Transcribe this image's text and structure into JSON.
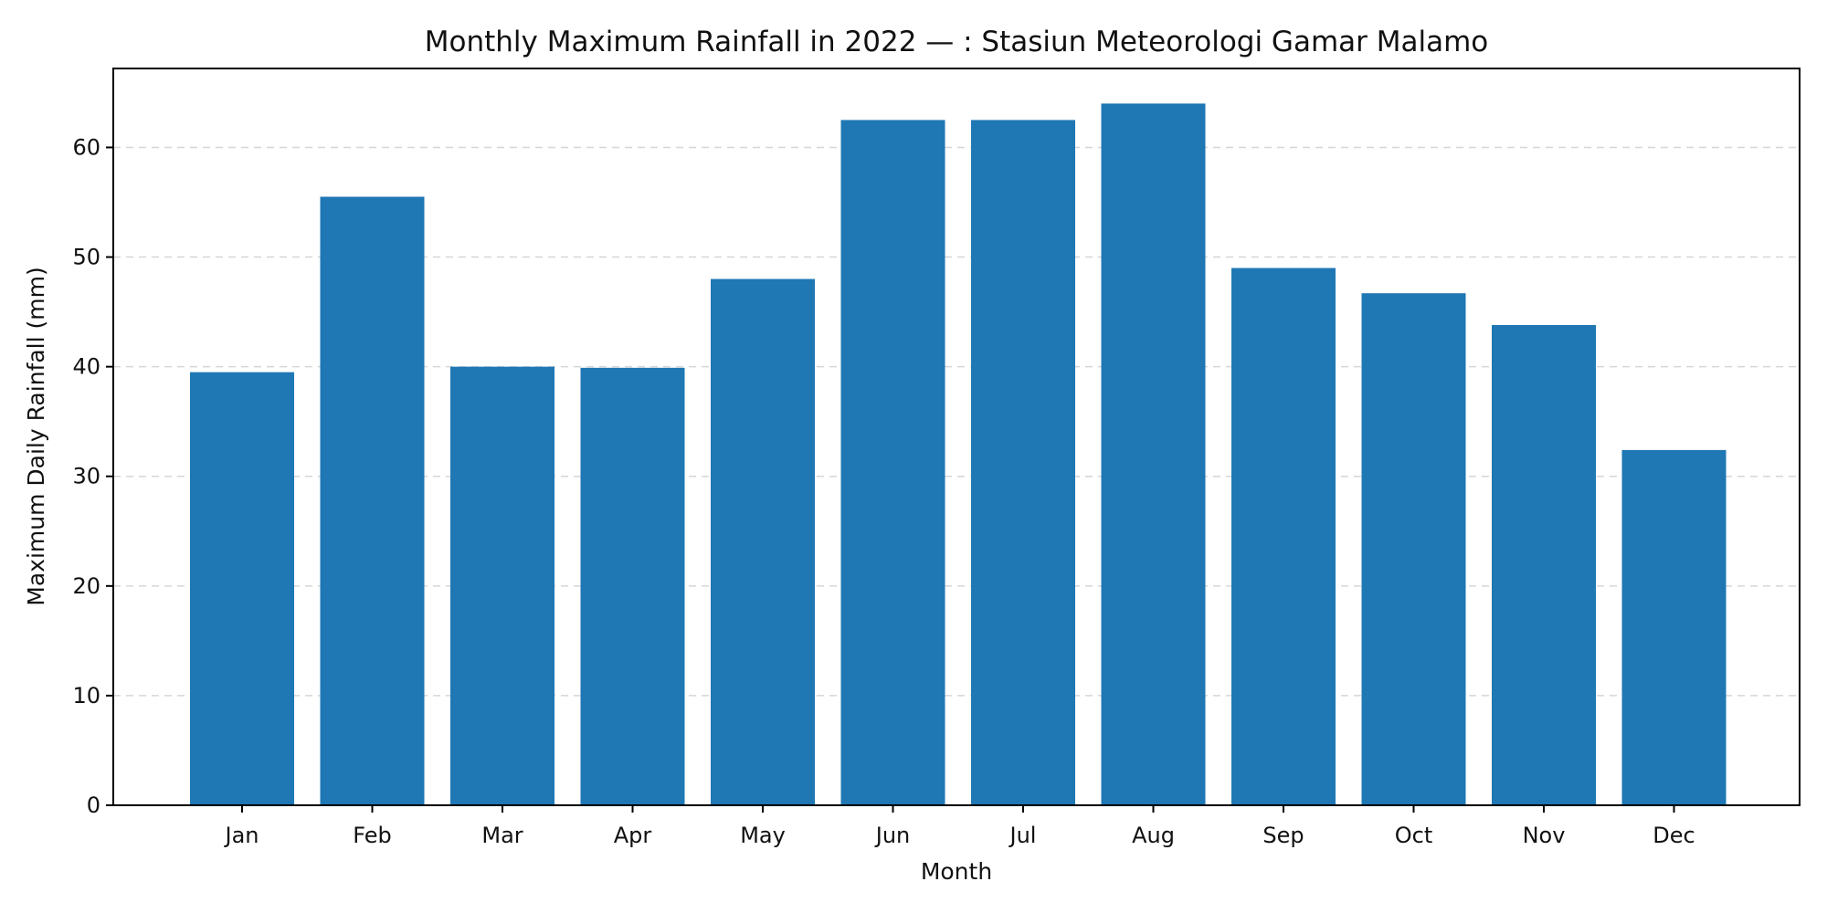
{
  "chart_data": {
    "type": "bar",
    "title": "Monthly Maximum Rainfall in 2022 — :  Stasiun Meteorologi Gamar Malamo",
    "xlabel": "Month",
    "ylabel": "Maximum Daily Rainfall (mm)",
    "categories": [
      "Jan",
      "Feb",
      "Mar",
      "Apr",
      "May",
      "Jun",
      "Jul",
      "Aug",
      "Sep",
      "Oct",
      "Nov",
      "Dec"
    ],
    "values": [
      39.5,
      55.5,
      40.0,
      39.9,
      48.0,
      62.5,
      62.5,
      64.0,
      49.0,
      46.7,
      43.8,
      32.4
    ],
    "ylim": [
      0,
      67.2
    ],
    "yticks": [
      0,
      10,
      20,
      30,
      40,
      50,
      60
    ],
    "grid": "horizontal dashed",
    "legend": "none",
    "colors": {
      "bar": "#1f77b4",
      "text": "#111111",
      "grid": "#cfcfcf",
      "axis": "#000000"
    }
  }
}
